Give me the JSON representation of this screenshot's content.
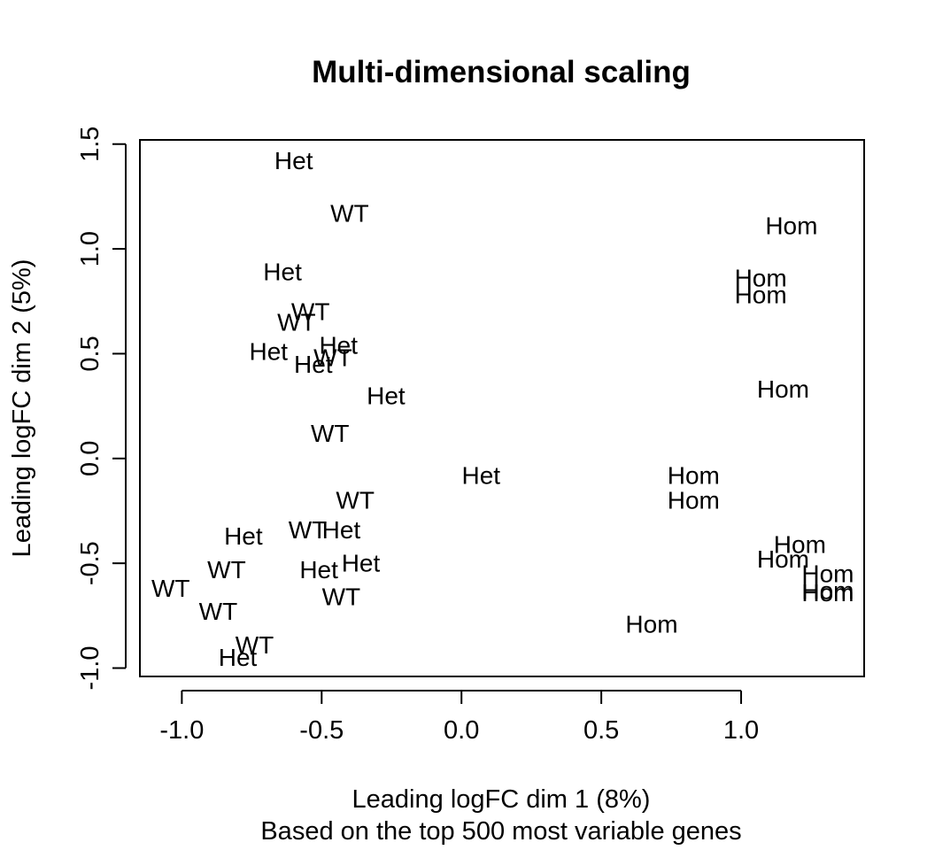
{
  "chart_data": {
    "type": "scatter",
    "title": "Multi-dimensional scaling",
    "xlabel": "Leading logFC dim 1 (8%)",
    "subtitle": "Based on the top 500 most variable genes",
    "ylabel": "Leading logFC dim 2 (5%)",
    "xlim": [
      -1.15,
      1.44
    ],
    "ylim": [
      -1.04,
      1.52
    ],
    "x_ticks": [
      -1.0,
      -0.5,
      0.0,
      0.5,
      1.0
    ],
    "x_tick_labels": [
      "-1.0",
      "-0.5",
      "0.0",
      "0.5",
      "1.0"
    ],
    "y_ticks": [
      -1.0,
      -0.5,
      0.0,
      0.5,
      1.0,
      1.5
    ],
    "y_tick_labels": [
      "-1.0",
      "-0.5",
      "0.0",
      "0.5",
      "1.0",
      "1.5"
    ],
    "grid": false,
    "legend": "none",
    "marker": "text",
    "points": [
      {
        "x": -0.6,
        "y": 1.42,
        "label": "Het"
      },
      {
        "x": -0.4,
        "y": 1.17,
        "label": "WT"
      },
      {
        "x": 1.18,
        "y": 1.11,
        "label": "Hom"
      },
      {
        "x": 1.07,
        "y": 0.86,
        "label": "Hom"
      },
      {
        "x": 1.07,
        "y": 0.78,
        "label": "Hom"
      },
      {
        "x": -0.64,
        "y": 0.89,
        "label": "Het"
      },
      {
        "x": -0.54,
        "y": 0.7,
        "label": "WT"
      },
      {
        "x": -0.59,
        "y": 0.65,
        "label": "WT"
      },
      {
        "x": -0.44,
        "y": 0.54,
        "label": "Het"
      },
      {
        "x": -0.69,
        "y": 0.51,
        "label": "Het"
      },
      {
        "x": -0.46,
        "y": 0.48,
        "label": "WT"
      },
      {
        "x": -0.53,
        "y": 0.45,
        "label": "Het"
      },
      {
        "x": -0.27,
        "y": 0.3,
        "label": "Het"
      },
      {
        "x": 1.15,
        "y": 0.33,
        "label": "Hom"
      },
      {
        "x": -0.47,
        "y": 0.12,
        "label": "WT"
      },
      {
        "x": 0.07,
        "y": -0.08,
        "label": "Het"
      },
      {
        "x": 0.83,
        "y": -0.08,
        "label": "Hom"
      },
      {
        "x": 0.83,
        "y": -0.2,
        "label": "Hom"
      },
      {
        "x": -0.38,
        "y": -0.2,
        "label": "WT"
      },
      {
        "x": -0.78,
        "y": -0.37,
        "label": "Het"
      },
      {
        "x": -0.55,
        "y": -0.34,
        "label": "WT"
      },
      {
        "x": -0.43,
        "y": -0.34,
        "label": "Het"
      },
      {
        "x": 1.21,
        "y": -0.41,
        "label": "Hom"
      },
      {
        "x": 1.15,
        "y": -0.48,
        "label": "Hom"
      },
      {
        "x": -0.84,
        "y": -0.53,
        "label": "WT"
      },
      {
        "x": -0.51,
        "y": -0.53,
        "label": "Het"
      },
      {
        "x": -0.36,
        "y": -0.5,
        "label": "Het"
      },
      {
        "x": 1.31,
        "y": -0.55,
        "label": "Hom"
      },
      {
        "x": 1.31,
        "y": -0.63,
        "label": "Hom"
      },
      {
        "x": 1.31,
        "y": -0.64,
        "label": "Hom"
      },
      {
        "x": -1.04,
        "y": -0.62,
        "label": "WT"
      },
      {
        "x": -0.87,
        "y": -0.73,
        "label": "WT"
      },
      {
        "x": -0.43,
        "y": -0.66,
        "label": "WT"
      },
      {
        "x": 0.68,
        "y": -0.79,
        "label": "Hom"
      },
      {
        "x": -0.74,
        "y": -0.89,
        "label": "WT"
      },
      {
        "x": -0.8,
        "y": -0.95,
        "label": "Het"
      }
    ]
  }
}
